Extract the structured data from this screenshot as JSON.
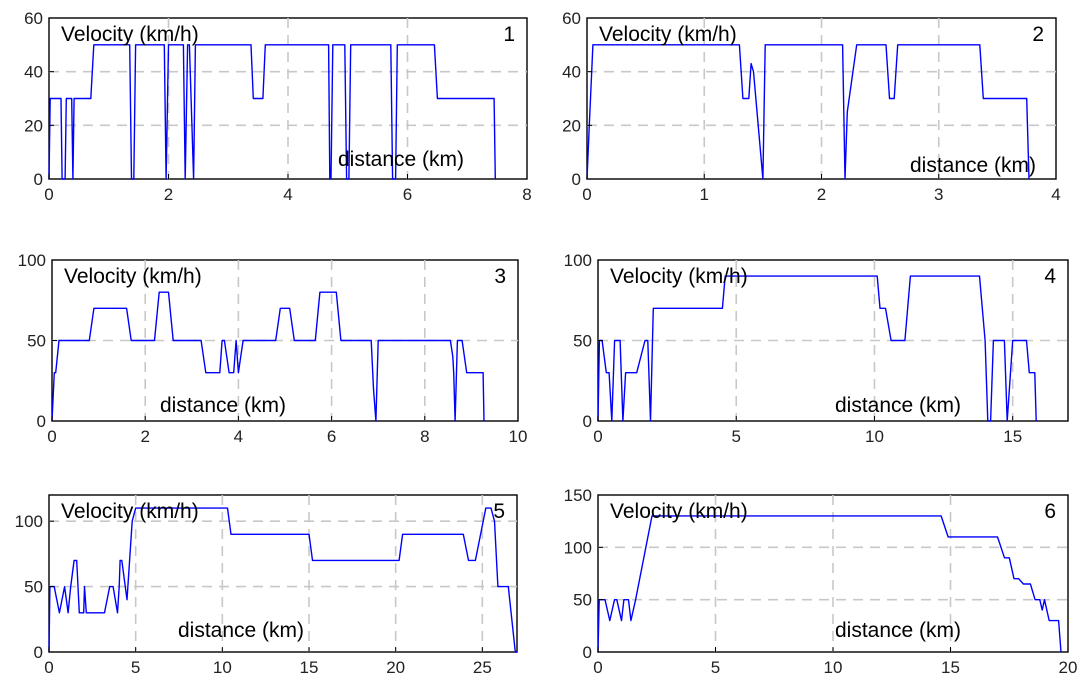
{
  "series_color": "#0000ff",
  "chart_data": [
    {
      "type": "line",
      "panel_number": "1",
      "ylabel": "Velocity (km/h)",
      "xlabel": "distance (km)",
      "xlim": [
        0,
        8
      ],
      "ylim": [
        0,
        60
      ],
      "xticks": [
        0,
        2,
        4,
        6,
        8
      ],
      "yticks": [
        0,
        20,
        40,
        60
      ],
      "grid": true,
      "series": [
        {
          "x": [
            0,
            0.02,
            0.03,
            0.2,
            0.22,
            0.27,
            0.29,
            0.38,
            0.4,
            0.42,
            0.7,
            0.75,
            1.35,
            1.38,
            1.42,
            1.45,
            1.93,
            1.96,
            2.0,
            2.03,
            2.25,
            2.28,
            2.32,
            2.35,
            2.42,
            2.45,
            2.52,
            2.55,
            3.38,
            3.42,
            3.58,
            3.62,
            4.68,
            4.7,
            4.72,
            4.75,
            4.95,
            4.98,
            5.02,
            5.05,
            5.72,
            5.75,
            5.8,
            5.83,
            6.45,
            6.5,
            7.45,
            7.47
          ],
          "y": [
            0,
            30,
            30,
            30,
            0,
            0,
            30,
            30,
            0,
            30,
            30,
            50,
            50,
            0,
            0,
            50,
            50,
            0,
            50,
            50,
            50,
            0,
            50,
            50,
            0,
            50,
            50,
            50,
            50,
            30,
            30,
            50,
            50,
            0,
            0,
            50,
            50,
            0,
            0,
            50,
            50,
            0,
            0,
            50,
            50,
            30,
            30,
            0
          ]
        }
      ]
    },
    {
      "type": "line",
      "panel_number": "2",
      "ylabel": "Velocity (km/h)",
      "xlabel": "distance (km)",
      "xlim": [
        0,
        4
      ],
      "ylim": [
        0,
        60
      ],
      "xticks": [
        0,
        1,
        2,
        3,
        4
      ],
      "yticks": [
        0,
        20,
        40,
        60
      ],
      "grid": true,
      "series": [
        {
          "x": [
            0,
            0.02,
            0.05,
            1.3,
            1.33,
            1.38,
            1.4,
            1.42,
            1.5,
            1.52,
            2.18,
            2.2,
            2.22,
            2.3,
            2.55,
            2.58,
            2.62,
            2.65,
            3.35,
            3.38,
            3.75,
            3.77
          ],
          "y": [
            0,
            20,
            50,
            50,
            30,
            30,
            43,
            40,
            0,
            50,
            50,
            0,
            25,
            50,
            50,
            30,
            30,
            50,
            50,
            30,
            30,
            0
          ]
        }
      ]
    },
    {
      "type": "line",
      "panel_number": "3",
      "ylabel": "Velocity (km/h)",
      "xlabel": "distance (km)",
      "xlim": [
        0,
        10
      ],
      "ylim": [
        0,
        100
      ],
      "xticks": [
        0,
        2,
        4,
        6,
        8,
        10
      ],
      "yticks": [
        0,
        50,
        100
      ],
      "grid": true,
      "series": [
        {
          "x": [
            0,
            0.05,
            0.08,
            0.15,
            0.8,
            0.9,
            1.6,
            1.7,
            2.2,
            2.3,
            2.5,
            2.6,
            3.2,
            3.3,
            3.6,
            3.65,
            3.7,
            3.8,
            3.9,
            3.95,
            4.0,
            4.1,
            4.8,
            4.9,
            5.1,
            5.2,
            5.65,
            5.75,
            6.1,
            6.2,
            6.85,
            6.9,
            6.95,
            7.0,
            8.55,
            8.6,
            8.62,
            8.65,
            8.7,
            8.8,
            8.9,
            9.0,
            9.25,
            9.27
          ],
          "y": [
            0,
            30,
            30,
            50,
            50,
            70,
            70,
            50,
            50,
            80,
            80,
            50,
            50,
            30,
            30,
            50,
            50,
            30,
            30,
            50,
            30,
            50,
            50,
            70,
            70,
            50,
            50,
            80,
            80,
            50,
            50,
            20,
            0,
            50,
            50,
            40,
            30,
            0,
            50,
            50,
            30,
            30,
            30,
            0
          ]
        }
      ]
    },
    {
      "type": "line",
      "panel_number": "4",
      "ylabel": "Velocity (km/h)",
      "xlabel": "distance (km)",
      "xlim": [
        0,
        17
      ],
      "ylim": [
        0,
        100
      ],
      "xticks": [
        0,
        5,
        10,
        15
      ],
      "yticks": [
        0,
        50,
        100
      ],
      "grid": true,
      "series": [
        {
          "x": [
            0,
            0.05,
            0.15,
            0.3,
            0.4,
            0.5,
            0.6,
            0.8,
            0.9,
            1.0,
            1.4,
            1.7,
            1.8,
            1.9,
            2.0,
            4.5,
            4.6,
            10.1,
            10.2,
            10.4,
            10.6,
            11.1,
            11.3,
            13.8,
            14.0,
            14.1,
            14.2,
            14.3,
            14.7,
            14.8,
            15.0,
            15.5,
            15.6,
            15.8,
            15.85
          ],
          "y": [
            0,
            50,
            50,
            30,
            30,
            0,
            50,
            50,
            0,
            30,
            30,
            50,
            50,
            0,
            70,
            70,
            90,
            90,
            70,
            70,
            50,
            50,
            90,
            90,
            50,
            0,
            0,
            50,
            50,
            0,
            50,
            50,
            30,
            30,
            0
          ]
        }
      ]
    },
    {
      "type": "line",
      "panel_number": "5",
      "ylabel": "Velocity (km/h)",
      "xlabel": "distance (km)",
      "xlim": [
        0,
        27
      ],
      "ylim": [
        0,
        120
      ],
      "xticks": [
        0,
        5,
        10,
        15,
        20,
        25
      ],
      "yticks": [
        0,
        50,
        100
      ],
      "grid": true,
      "series": [
        {
          "x": [
            0,
            0.05,
            0.3,
            0.6,
            0.9,
            1.1,
            1.25,
            1.45,
            1.6,
            1.75,
            2.0,
            2.05,
            2.15,
            3.2,
            3.5,
            3.7,
            3.95,
            4.05,
            4.1,
            4.2,
            4.5,
            4.8,
            5.0,
            10.3,
            10.5,
            15.0,
            15.2,
            20.2,
            20.4,
            23.9,
            24.2,
            24.6,
            24.9,
            25.2,
            25.5,
            25.7,
            25.9,
            26.1,
            26.5,
            26.9,
            27.0
          ],
          "y": [
            0,
            50,
            50,
            30,
            50,
            30,
            50,
            70,
            70,
            30,
            30,
            50,
            30,
            30,
            50,
            50,
            30,
            50,
            70,
            70,
            40,
            100,
            110,
            110,
            90,
            90,
            70,
            70,
            90,
            90,
            70,
            70,
            90,
            110,
            110,
            100,
            50,
            50,
            50,
            0,
            0
          ]
        }
      ]
    },
    {
      "type": "line",
      "panel_number": "6",
      "ylabel": "Velocity (km/h)",
      "xlabel": "distance (km)",
      "xlim": [
        0,
        20
      ],
      "ylim": [
        0,
        150
      ],
      "xticks": [
        0,
        5,
        10,
        15,
        20
      ],
      "yticks": [
        0,
        50,
        100,
        150
      ],
      "grid": true,
      "series": [
        {
          "x": [
            0,
            0.05,
            0.3,
            0.5,
            0.7,
            0.8,
            1.0,
            1.1,
            1.3,
            1.4,
            1.6,
            2.3,
            14.6,
            14.9,
            17.0,
            17.3,
            17.5,
            17.7,
            17.9,
            18.1,
            18.4,
            18.6,
            18.8,
            18.9,
            19.0,
            19.2,
            19.3,
            19.6,
            19.7
          ],
          "y": [
            0,
            50,
            50,
            30,
            50,
            50,
            30,
            50,
            50,
            30,
            50,
            130,
            130,
            110,
            110,
            90,
            90,
            70,
            70,
            65,
            65,
            50,
            50,
            40,
            50,
            30,
            30,
            30,
            0
          ]
        }
      ]
    }
  ]
}
